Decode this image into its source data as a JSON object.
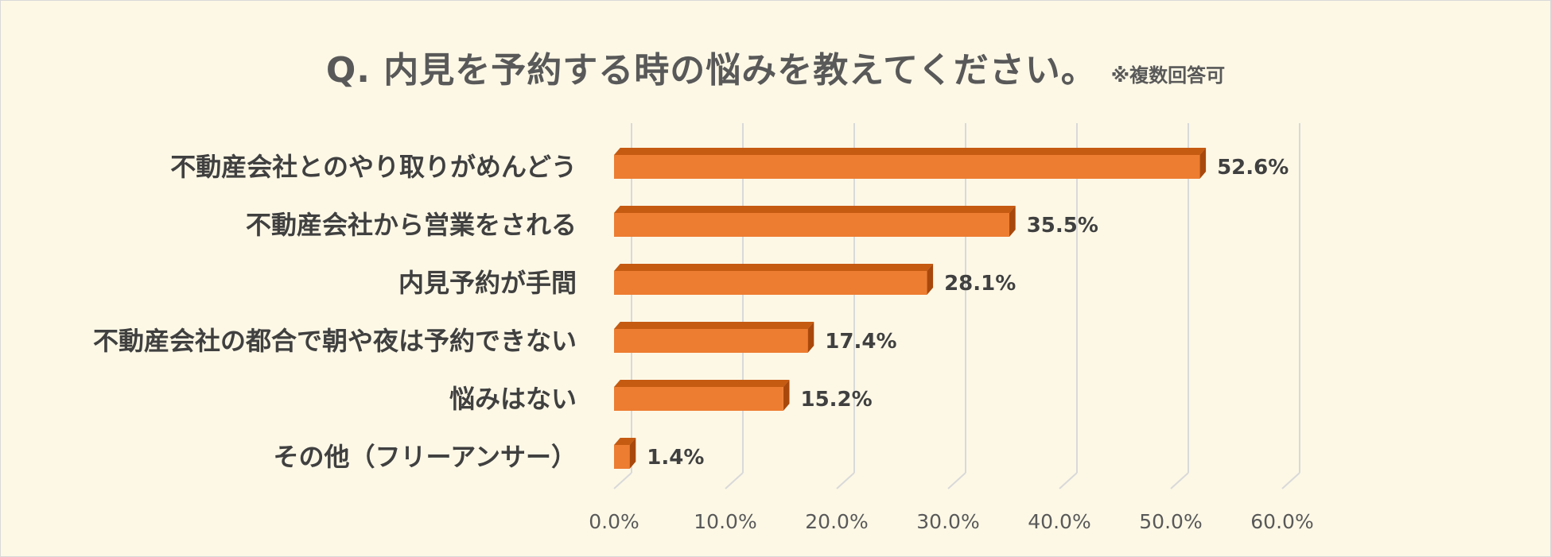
{
  "title": "Q. 内見を予約する時の悩みを教えてください。",
  "note": "※複数回答可",
  "colors": {
    "background": "#fdf8e6",
    "bar_front": "#ed7d31",
    "bar_top": "#c55a11",
    "bar_side": "#a9480c",
    "grid": "#d9d9d9"
  },
  "chart_data": {
    "type": "bar",
    "orientation": "horizontal",
    "title": "Q. 内見を予約する時の悩みを教えてください。",
    "subtitle": "※複数回答可",
    "categories": [
      "不動産会社とのやり取りがめんどう",
      "不動産会社から営業をされる",
      "内見予約が手間",
      "不動産会社の都合で朝や夜は予約できない",
      "悩みはない",
      "その他（フリーアンサー）"
    ],
    "values": [
      52.6,
      35.5,
      28.1,
      17.4,
      15.2,
      1.4
    ],
    "value_labels": [
      "52.6%",
      "35.5%",
      "28.1%",
      "17.4%",
      "15.2%",
      "1.4%"
    ],
    "xlim": [
      0,
      60
    ],
    "ticks": [
      0,
      10,
      20,
      30,
      40,
      50,
      60
    ],
    "tick_labels": [
      "0.0%",
      "10.0%",
      "20.0%",
      "30.0%",
      "40.0%",
      "50.0%",
      "60.0%"
    ],
    "grid": true,
    "style": "3d"
  }
}
